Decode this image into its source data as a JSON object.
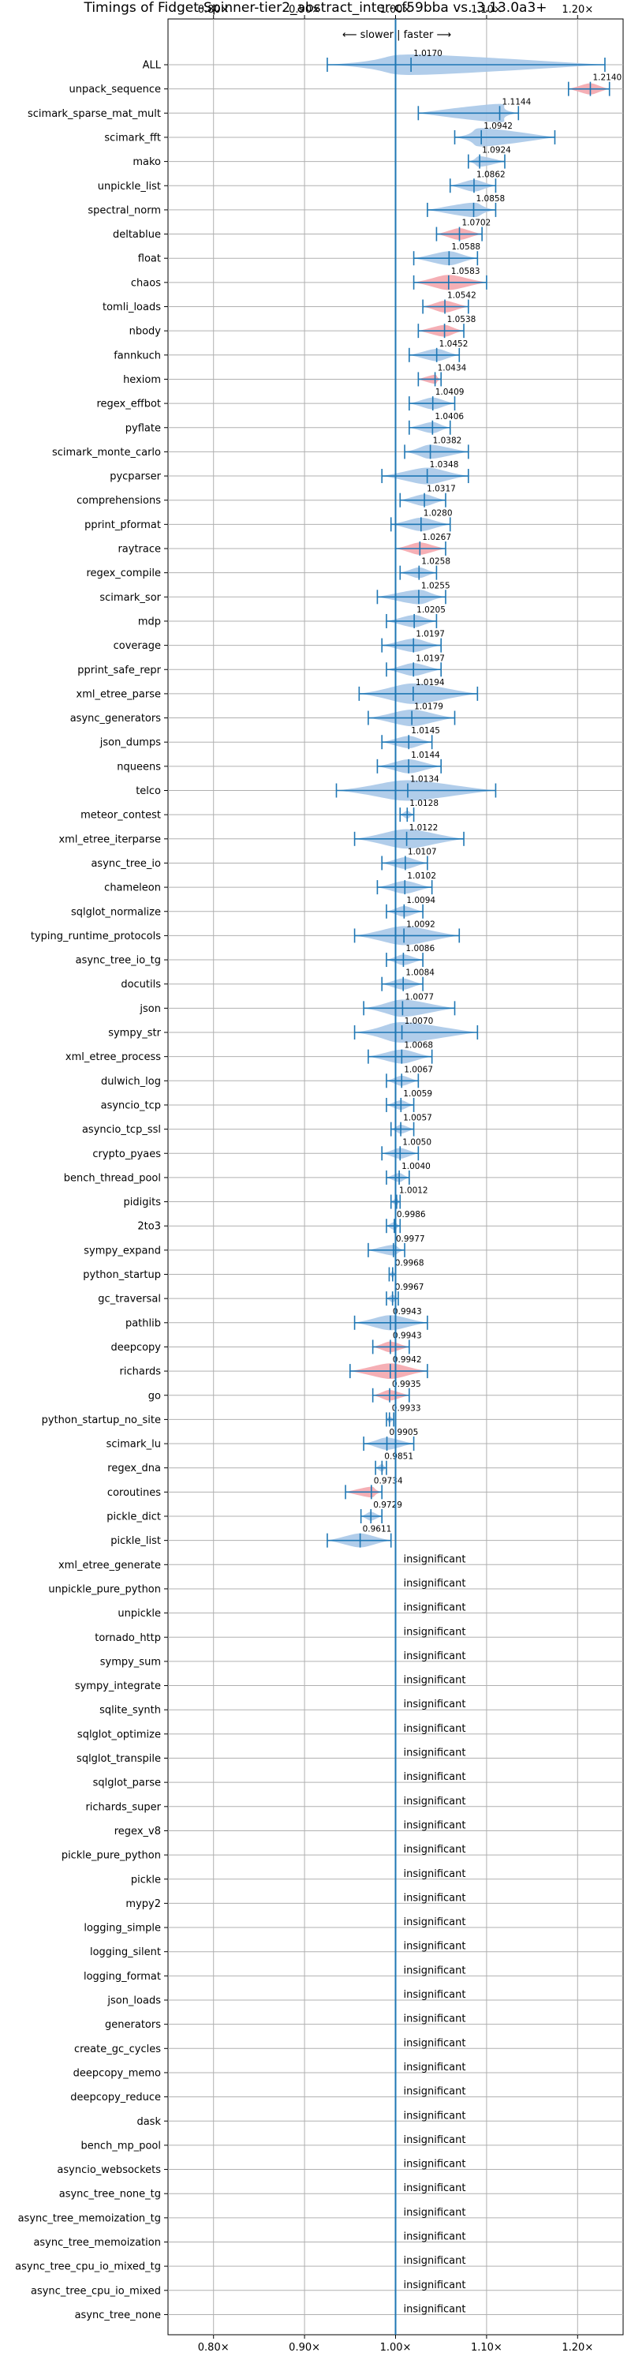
{
  "chart_data": {
    "type": "violin",
    "title": "Timings of Fidget-Spinner-tier2_abstract_inter-cf59bba vs. 3.13.0a3+",
    "direction_hint": "⟵ slower | faster ⟶",
    "xlim": [
      0.75,
      1.25
    ],
    "x_ticks": [
      0.8,
      0.9,
      1.0,
      1.1,
      1.2
    ],
    "x_tick_labels": [
      "0.80×",
      "0.90×",
      "1.00×",
      "1.10×",
      "1.20×"
    ],
    "grid": true,
    "insignificant_label": "insignificant",
    "colors": {
      "faster": "#a8c8e8",
      "slower": "#f4a6ad",
      "line": "#1f77b4",
      "significant_threshold_line": "#1f77b4"
    },
    "benchmarks": [
      {
        "name": "ALL",
        "value": 1.017,
        "label": "1.0170",
        "low": 0.925,
        "high": 1.23,
        "color": "faster"
      },
      {
        "name": "unpack_sequence",
        "value": 1.214,
        "label": "1.2140",
        "low": 1.19,
        "high": 1.235,
        "color": "slower"
      },
      {
        "name": "scimark_sparse_mat_mult",
        "value": 1.1144,
        "label": "1.1144",
        "low": 1.025,
        "high": 1.135,
        "color": "faster"
      },
      {
        "name": "scimark_fft",
        "value": 1.0942,
        "label": "1.0942",
        "low": 1.065,
        "high": 1.175,
        "color": "faster"
      },
      {
        "name": "mako",
        "value": 1.0924,
        "label": "1.0924",
        "low": 1.08,
        "high": 1.12,
        "color": "faster"
      },
      {
        "name": "unpickle_list",
        "value": 1.0862,
        "label": "1.0862",
        "low": 1.06,
        "high": 1.11,
        "color": "faster"
      },
      {
        "name": "spectral_norm",
        "value": 1.0858,
        "label": "1.0858",
        "low": 1.035,
        "high": 1.11,
        "color": "faster"
      },
      {
        "name": "deltablue",
        "value": 1.0702,
        "label": "1.0702",
        "low": 1.045,
        "high": 1.095,
        "color": "slower"
      },
      {
        "name": "float",
        "value": 1.0588,
        "label": "1.0588",
        "low": 1.02,
        "high": 1.09,
        "color": "faster"
      },
      {
        "name": "chaos",
        "value": 1.0583,
        "label": "1.0583",
        "low": 1.02,
        "high": 1.1,
        "color": "slower"
      },
      {
        "name": "tomli_loads",
        "value": 1.0542,
        "label": "1.0542",
        "low": 1.03,
        "high": 1.08,
        "color": "slower"
      },
      {
        "name": "nbody",
        "value": 1.0538,
        "label": "1.0538",
        "low": 1.025,
        "high": 1.075,
        "color": "slower"
      },
      {
        "name": "fannkuch",
        "value": 1.0452,
        "label": "1.0452",
        "low": 1.015,
        "high": 1.07,
        "color": "faster"
      },
      {
        "name": "hexiom",
        "value": 1.0434,
        "label": "1.0434",
        "low": 1.025,
        "high": 1.05,
        "color": "slower"
      },
      {
        "name": "regex_effbot",
        "value": 1.0409,
        "label": "1.0409",
        "low": 1.015,
        "high": 1.065,
        "color": "faster"
      },
      {
        "name": "pyflate",
        "value": 1.0406,
        "label": "1.0406",
        "low": 1.015,
        "high": 1.06,
        "color": "faster"
      },
      {
        "name": "scimark_monte_carlo",
        "value": 1.0382,
        "label": "1.0382",
        "low": 1.01,
        "high": 1.08,
        "color": "faster"
      },
      {
        "name": "pycparser",
        "value": 1.0348,
        "label": "1.0348",
        "low": 0.985,
        "high": 1.08,
        "color": "faster"
      },
      {
        "name": "comprehensions",
        "value": 1.0317,
        "label": "1.0317",
        "low": 1.005,
        "high": 1.055,
        "color": "faster"
      },
      {
        "name": "pprint_pformat",
        "value": 1.028,
        "label": "1.0280",
        "low": 0.995,
        "high": 1.06,
        "color": "faster"
      },
      {
        "name": "raytrace",
        "value": 1.0267,
        "label": "1.0267",
        "low": 1.0,
        "high": 1.055,
        "color": "slower"
      },
      {
        "name": "regex_compile",
        "value": 1.0258,
        "label": "1.0258",
        "low": 1.005,
        "high": 1.045,
        "color": "faster"
      },
      {
        "name": "scimark_sor",
        "value": 1.0255,
        "label": "1.0255",
        "low": 0.98,
        "high": 1.055,
        "color": "faster"
      },
      {
        "name": "mdp",
        "value": 1.0205,
        "label": "1.0205",
        "low": 0.99,
        "high": 1.045,
        "color": "faster"
      },
      {
        "name": "coverage",
        "value": 1.0197,
        "label": "1.0197",
        "low": 0.985,
        "high": 1.05,
        "color": "faster"
      },
      {
        "name": "pprint_safe_repr",
        "value": 1.0197,
        "label": "1.0197",
        "low": 0.99,
        "high": 1.05,
        "color": "faster"
      },
      {
        "name": "xml_etree_parse",
        "value": 1.0194,
        "label": "1.0194",
        "low": 0.96,
        "high": 1.09,
        "color": "faster"
      },
      {
        "name": "async_generators",
        "value": 1.0179,
        "label": "1.0179",
        "low": 0.97,
        "high": 1.065,
        "color": "faster"
      },
      {
        "name": "json_dumps",
        "value": 1.0145,
        "label": "1.0145",
        "low": 0.985,
        "high": 1.04,
        "color": "faster"
      },
      {
        "name": "nqueens",
        "value": 1.0144,
        "label": "1.0144",
        "low": 0.98,
        "high": 1.05,
        "color": "faster"
      },
      {
        "name": "telco",
        "value": 1.0134,
        "label": "1.0134",
        "low": 0.935,
        "high": 1.11,
        "color": "faster"
      },
      {
        "name": "meteor_contest",
        "value": 1.0128,
        "label": "1.0128",
        "low": 1.005,
        "high": 1.02,
        "color": "faster"
      },
      {
        "name": "xml_etree_iterparse",
        "value": 1.0122,
        "label": "1.0122",
        "low": 0.955,
        "high": 1.075,
        "color": "faster"
      },
      {
        "name": "async_tree_io",
        "value": 1.0107,
        "label": "1.0107",
        "low": 0.985,
        "high": 1.035,
        "color": "faster"
      },
      {
        "name": "chameleon",
        "value": 1.0102,
        "label": "1.0102",
        "low": 0.98,
        "high": 1.04,
        "color": "faster"
      },
      {
        "name": "sqlglot_normalize",
        "value": 1.0094,
        "label": "1.0094",
        "low": 0.99,
        "high": 1.03,
        "color": "faster"
      },
      {
        "name": "typing_runtime_protocols",
        "value": 1.0092,
        "label": "1.0092",
        "low": 0.955,
        "high": 1.07,
        "color": "faster"
      },
      {
        "name": "async_tree_io_tg",
        "value": 1.0086,
        "label": "1.0086",
        "low": 0.99,
        "high": 1.03,
        "color": "faster"
      },
      {
        "name": "docutils",
        "value": 1.0084,
        "label": "1.0084",
        "low": 0.985,
        "high": 1.03,
        "color": "faster"
      },
      {
        "name": "json",
        "value": 1.0077,
        "label": "1.0077",
        "low": 0.965,
        "high": 1.065,
        "color": "faster"
      },
      {
        "name": "sympy_str",
        "value": 1.007,
        "label": "1.0070",
        "low": 0.955,
        "high": 1.09,
        "color": "faster"
      },
      {
        "name": "xml_etree_process",
        "value": 1.0068,
        "label": "1.0068",
        "low": 0.97,
        "high": 1.04,
        "color": "faster"
      },
      {
        "name": "dulwich_log",
        "value": 1.0067,
        "label": "1.0067",
        "low": 0.99,
        "high": 1.025,
        "color": "faster"
      },
      {
        "name": "asyncio_tcp",
        "value": 1.0059,
        "label": "1.0059",
        "low": 0.99,
        "high": 1.02,
        "color": "faster"
      },
      {
        "name": "asyncio_tcp_ssl",
        "value": 1.0057,
        "label": "1.0057",
        "low": 0.995,
        "high": 1.02,
        "color": "faster"
      },
      {
        "name": "crypto_pyaes",
        "value": 1.005,
        "label": "1.0050",
        "low": 0.985,
        "high": 1.025,
        "color": "faster"
      },
      {
        "name": "bench_thread_pool",
        "value": 1.004,
        "label": "1.0040",
        "low": 0.99,
        "high": 1.015,
        "color": "faster"
      },
      {
        "name": "pidigits",
        "value": 1.0012,
        "label": "1.0012",
        "low": 0.995,
        "high": 1.005,
        "color": "faster"
      },
      {
        "name": "2to3",
        "value": 0.9986,
        "label": "0.9986",
        "low": 0.99,
        "high": 1.005,
        "color": "faster"
      },
      {
        "name": "sympy_expand",
        "value": 0.9977,
        "label": "0.9977",
        "low": 0.97,
        "high": 1.01,
        "color": "faster"
      },
      {
        "name": "python_startup",
        "value": 0.9968,
        "label": "0.9968",
        "low": 0.993,
        "high": 1.0,
        "color": "faster"
      },
      {
        "name": "gc_traversal",
        "value": 0.9967,
        "label": "0.9967",
        "low": 0.99,
        "high": 1.003,
        "color": "faster"
      },
      {
        "name": "pathlib",
        "value": 0.9943,
        "label": "0.9943",
        "low": 0.955,
        "high": 1.035,
        "color": "faster"
      },
      {
        "name": "deepcopy",
        "value": 0.9943,
        "label": "0.9943",
        "low": 0.975,
        "high": 1.015,
        "color": "slower"
      },
      {
        "name": "richards",
        "value": 0.9942,
        "label": "0.9942",
        "low": 0.95,
        "high": 1.035,
        "color": "slower"
      },
      {
        "name": "go",
        "value": 0.9935,
        "label": "0.9935",
        "low": 0.975,
        "high": 1.015,
        "color": "slower"
      },
      {
        "name": "python_startup_no_site",
        "value": 0.9933,
        "label": "0.9933",
        "low": 0.99,
        "high": 0.998,
        "color": "faster"
      },
      {
        "name": "scimark_lu",
        "value": 0.9905,
        "label": "0.9905",
        "low": 0.965,
        "high": 1.02,
        "color": "faster"
      },
      {
        "name": "regex_dna",
        "value": 0.9851,
        "label": "0.9851",
        "low": 0.978,
        "high": 0.99,
        "color": "faster"
      },
      {
        "name": "coroutines",
        "value": 0.9734,
        "label": "0.9734",
        "low": 0.945,
        "high": 0.985,
        "color": "slower"
      },
      {
        "name": "pickle_dict",
        "value": 0.9729,
        "label": "0.9729",
        "low": 0.962,
        "high": 0.985,
        "color": "faster"
      },
      {
        "name": "pickle_list",
        "value": 0.9611,
        "label": "0.9611",
        "low": 0.925,
        "high": 0.995,
        "color": "faster"
      },
      {
        "name": "xml_etree_generate",
        "insignificant": true
      },
      {
        "name": "unpickle_pure_python",
        "insignificant": true
      },
      {
        "name": "unpickle",
        "insignificant": true
      },
      {
        "name": "tornado_http",
        "insignificant": true
      },
      {
        "name": "sympy_sum",
        "insignificant": true
      },
      {
        "name": "sympy_integrate",
        "insignificant": true
      },
      {
        "name": "sqlite_synth",
        "insignificant": true
      },
      {
        "name": "sqlglot_optimize",
        "insignificant": true
      },
      {
        "name": "sqlglot_transpile",
        "insignificant": true
      },
      {
        "name": "sqlglot_parse",
        "insignificant": true
      },
      {
        "name": "richards_super",
        "insignificant": true
      },
      {
        "name": "regex_v8",
        "insignificant": true
      },
      {
        "name": "pickle_pure_python",
        "insignificant": true
      },
      {
        "name": "pickle",
        "insignificant": true
      },
      {
        "name": "mypy2",
        "insignificant": true
      },
      {
        "name": "logging_simple",
        "insignificant": true
      },
      {
        "name": "logging_silent",
        "insignificant": true
      },
      {
        "name": "logging_format",
        "insignificant": true
      },
      {
        "name": "json_loads",
        "insignificant": true
      },
      {
        "name": "generators",
        "insignificant": true
      },
      {
        "name": "create_gc_cycles",
        "insignificant": true
      },
      {
        "name": "deepcopy_memo",
        "insignificant": true
      },
      {
        "name": "deepcopy_reduce",
        "insignificant": true
      },
      {
        "name": "dask",
        "insignificant": true
      },
      {
        "name": "bench_mp_pool",
        "insignificant": true
      },
      {
        "name": "asyncio_websockets",
        "insignificant": true
      },
      {
        "name": "async_tree_none_tg",
        "insignificant": true
      },
      {
        "name": "async_tree_memoization_tg",
        "insignificant": true
      },
      {
        "name": "async_tree_memoization",
        "insignificant": true
      },
      {
        "name": "async_tree_cpu_io_mixed_tg",
        "insignificant": true
      },
      {
        "name": "async_tree_cpu_io_mixed",
        "insignificant": true
      },
      {
        "name": "async_tree_none",
        "insignificant": true
      }
    ]
  }
}
